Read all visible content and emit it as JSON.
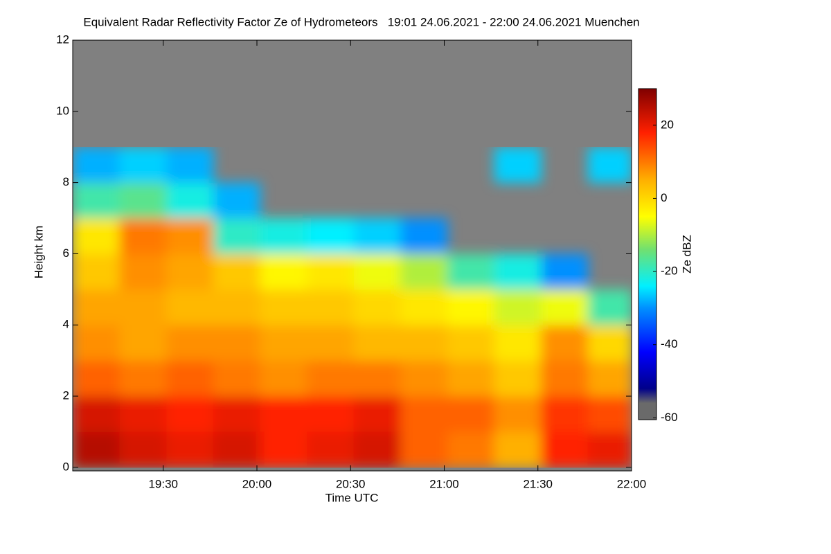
{
  "chart_data": {
    "type": "heatmap",
    "title": "Equivalent Radar Reflectivity Factor Ze of Hydrometeors   19:01 24.06.2021 - 22:00 24.06.2021 Muenchen",
    "x_label": "Time UTC",
    "y_label": "Height km",
    "colorbar_label": "Ze dBZ",
    "background_color": "#808080",
    "xlim": [
      1141,
      1320
    ],
    "xticks": [
      {
        "value": 1170,
        "label": "19:30"
      },
      {
        "value": 1200,
        "label": "20:00"
      },
      {
        "value": 1230,
        "label": "20:30"
      },
      {
        "value": 1260,
        "label": "21:00"
      },
      {
        "value": 1290,
        "label": "21:30"
      },
      {
        "value": 1320,
        "label": "22:00"
      }
    ],
    "ylim": [
      -0.1,
      12
    ],
    "yticks": [
      0,
      2,
      4,
      6,
      8,
      10,
      12
    ],
    "clim": [
      -60.5,
      30
    ],
    "cticks": [
      20,
      0,
      -20,
      -40,
      -60
    ],
    "colorscale": [
      [
        -60.5,
        "#6a6a6a"
      ],
      [
        -56,
        "#6a6a6a"
      ],
      [
        -52,
        "#00008a"
      ],
      [
        -42,
        "#0000ff"
      ],
      [
        -30,
        "#0090ff"
      ],
      [
        -24,
        "#00f0ff"
      ],
      [
        -14,
        "#70e070"
      ],
      [
        -5,
        "#ffff00"
      ],
      [
        5,
        "#ffb000"
      ],
      [
        18,
        "#ff2000"
      ],
      [
        30,
        "#800000"
      ]
    ],
    "x": [
      1141,
      1156,
      1171,
      1186,
      1201,
      1216,
      1231,
      1246,
      1261,
      1276,
      1291,
      1306,
      1320
    ],
    "y": [
      0,
      1,
      2,
      3,
      4,
      5,
      6,
      7,
      8,
      9
    ],
    "z": [
      [
        25,
        22,
        20,
        22,
        18,
        20,
        22,
        12,
        10,
        5,
        18,
        20
      ],
      [
        22,
        20,
        18,
        20,
        18,
        18,
        20,
        12,
        12,
        8,
        16,
        14
      ],
      [
        12,
        10,
        12,
        10,
        8,
        10,
        10,
        8,
        6,
        2,
        10,
        6
      ],
      [
        8,
        6,
        8,
        8,
        6,
        6,
        4,
        4,
        2,
        -2,
        8,
        0
      ],
      [
        6,
        6,
        4,
        4,
        2,
        2,
        0,
        -2,
        -4,
        -8,
        -6,
        -18
      ],
      [
        2,
        8,
        6,
        2,
        -4,
        -2,
        -6,
        -10,
        -18,
        -22,
        -30,
        null
      ],
      [
        -2,
        10,
        8,
        -20,
        -22,
        -24,
        -26,
        -30,
        null,
        null,
        null,
        null
      ],
      [
        -18,
        -16,
        -22,
        -28,
        null,
        null,
        null,
        null,
        null,
        null,
        null,
        null
      ],
      [
        -28,
        -26,
        -28,
        null,
        null,
        null,
        null,
        null,
        null,
        -26,
        null,
        -26
      ]
    ]
  }
}
